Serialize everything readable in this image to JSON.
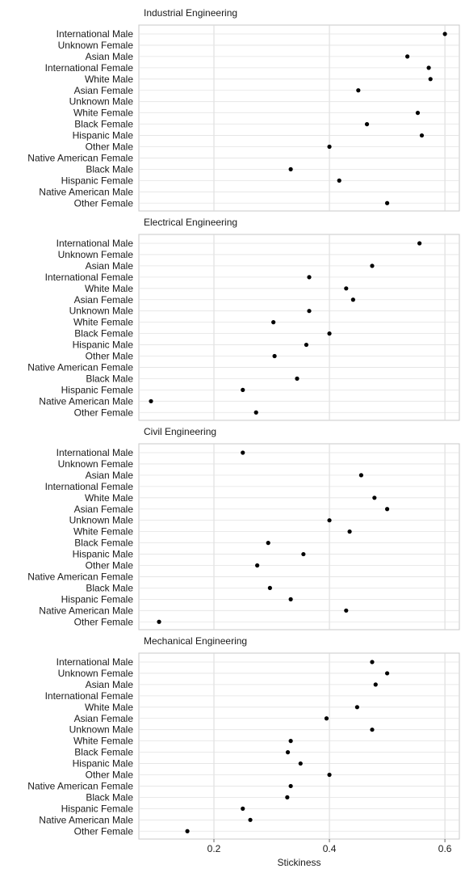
{
  "chart_data": {
    "type": "scatter",
    "xlabel": "Stickiness",
    "xticks": [
      0.2,
      0.4,
      0.6
    ],
    "xlim": [
      0.07,
      0.625
    ],
    "grid": true,
    "categories": [
      "International Male",
      "Unknown Female",
      "Asian Male",
      "International Female",
      "White Male",
      "Asian Female",
      "Unknown Male",
      "White Female",
      "Black Female",
      "Hispanic Male",
      "Other Male",
      "Native American Female",
      "Black Male",
      "Hispanic Female",
      "Native American Male",
      "Other Female"
    ],
    "panels": [
      {
        "title": "Industrial Engineering",
        "values": [
          0.6,
          null,
          0.535,
          0.572,
          0.575,
          0.45,
          null,
          0.553,
          0.465,
          0.56,
          0.4,
          null,
          0.333,
          0.417,
          null,
          0.5
        ]
      },
      {
        "title": "Electrical Engineering",
        "values": [
          0.556,
          null,
          0.474,
          0.365,
          0.429,
          0.441,
          0.365,
          0.303,
          0.4,
          0.36,
          0.305,
          null,
          0.344,
          0.25,
          0.091,
          0.273
        ]
      },
      {
        "title": "Civil Engineering",
        "values": [
          0.25,
          null,
          0.455,
          null,
          0.478,
          0.5,
          0.4,
          0.435,
          0.294,
          0.355,
          0.275,
          null,
          0.297,
          0.333,
          0.429,
          0.105
        ]
      },
      {
        "title": "Mechanical Engineering",
        "values": [
          0.474,
          0.5,
          0.48,
          null,
          0.448,
          0.395,
          0.474,
          0.333,
          0.328,
          0.35,
          0.4,
          0.333,
          0.327,
          0.25,
          0.263,
          0.154
        ]
      }
    ]
  }
}
